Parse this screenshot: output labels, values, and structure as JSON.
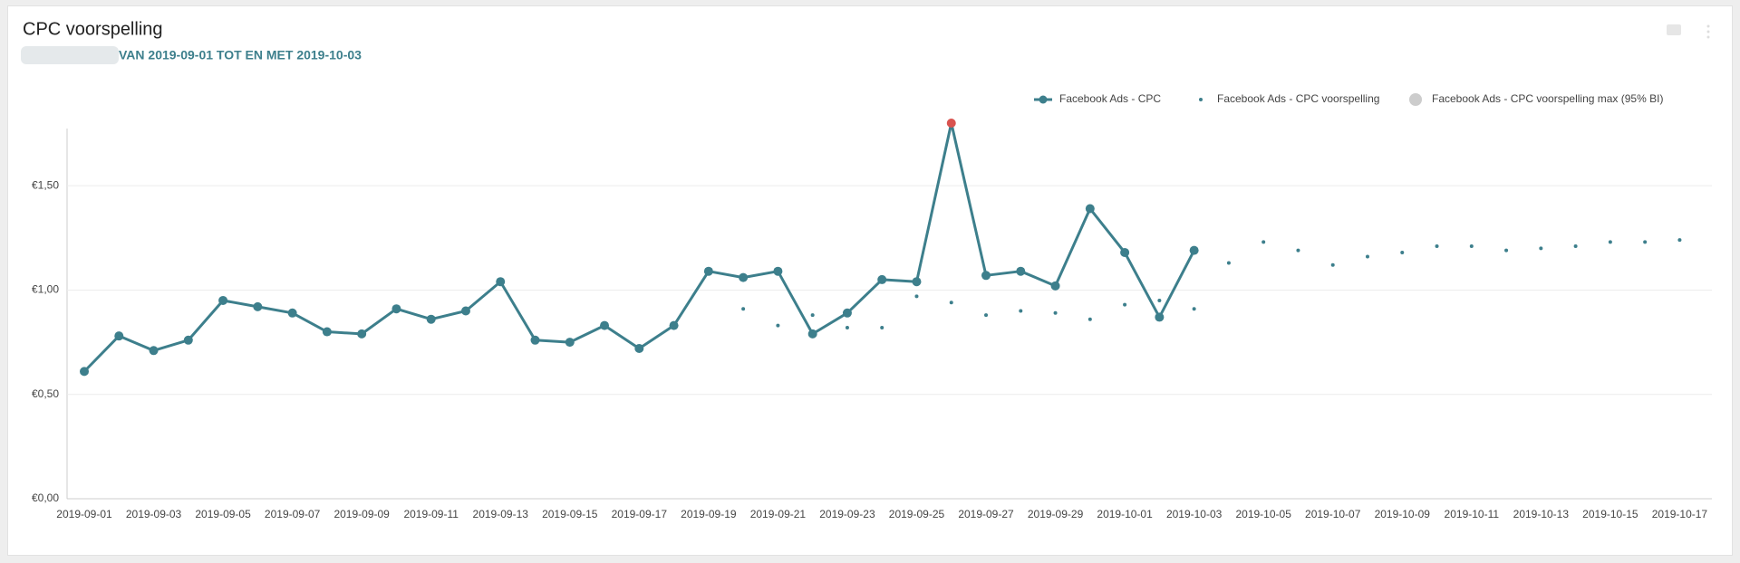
{
  "chart_data": {
    "type": "line",
    "title": "CPC voorspelling",
    "subtitle": "VAN 2019-09-01 TOT EN MET 2019-10-03",
    "categories": [
      "2019-09-01",
      null,
      "2019-09-03",
      null,
      "2019-09-05",
      null,
      "2019-09-07",
      null,
      "2019-09-09",
      null,
      "2019-09-11",
      null,
      "2019-09-13",
      null,
      "2019-09-15",
      null,
      "2019-09-17",
      null,
      "2019-09-19",
      null,
      "2019-09-21",
      null,
      "2019-09-23",
      null,
      "2019-09-25",
      null,
      "2019-09-27",
      null,
      "2019-09-29",
      null,
      "2019-10-01",
      null,
      "2019-10-03",
      null,
      "2019-10-05",
      null,
      "2019-10-07",
      null,
      "2019-10-09",
      null,
      "2019-10-11",
      null,
      "2019-10-13",
      null,
      "2019-10-15",
      null,
      "2019-10-17"
    ],
    "series": [
      {
        "name": "Facebook Ads - CPC",
        "color": "#3d7f8c",
        "style": "line",
        "values": [
          0.61,
          0.78,
          0.71,
          0.76,
          0.95,
          0.92,
          0.89,
          0.8,
          0.79,
          0.91,
          0.86,
          0.9,
          1.04,
          0.76,
          0.75,
          0.83,
          0.72,
          0.83,
          1.09,
          1.06,
          1.09,
          0.79,
          0.89,
          1.05,
          1.04,
          1.8,
          1.07,
          1.09,
          1.02,
          1.39,
          1.18,
          0.87,
          1.19,
          null,
          null,
          null,
          null,
          null,
          null,
          null,
          null,
          null,
          null,
          null,
          null,
          null,
          null
        ],
        "highlight": {
          "index": 25,
          "color": "#d9534f"
        }
      },
      {
        "name": "Facebook Ads - CPC voorspelling",
        "color": "#3d7f8c",
        "style": "dots",
        "values": [
          null,
          null,
          null,
          null,
          null,
          null,
          null,
          null,
          null,
          null,
          null,
          null,
          null,
          null,
          null,
          null,
          null,
          null,
          null,
          0.91,
          0.83,
          0.88,
          0.82,
          0.82,
          0.97,
          0.94,
          0.88,
          0.9,
          0.89,
          0.86,
          0.93,
          0.95,
          0.91,
          1.13,
          1.23,
          1.19,
          1.12,
          1.16,
          1.18,
          1.21,
          1.21,
          1.19,
          1.2,
          1.21,
          1.23,
          1.23,
          1.24
        ]
      },
      {
        "name": "Facebook Ads - CPC voorspelling max (95% BI)",
        "color": "#cccccc",
        "style": "hidden",
        "values": [
          null,
          null,
          null,
          null,
          null,
          null,
          null,
          null,
          null,
          null,
          null,
          null,
          null,
          null,
          null,
          null,
          null,
          null,
          null,
          null,
          null,
          null,
          null,
          null,
          null,
          null,
          null,
          null,
          null,
          null,
          null,
          null,
          null,
          null,
          null,
          null,
          null,
          null,
          null,
          null,
          null,
          null,
          null,
          null,
          null,
          null,
          null
        ]
      }
    ],
    "ylim": [
      0,
      1.8
    ],
    "yticks": [
      {
        "value": 0,
        "label": "€0,00"
      },
      {
        "value": 0.5,
        "label": "€0,50"
      },
      {
        "value": 1,
        "label": "€1,00"
      },
      {
        "value": 1.5,
        "label": "€1,50"
      }
    ],
    "grid": true,
    "legend": "top-right"
  }
}
